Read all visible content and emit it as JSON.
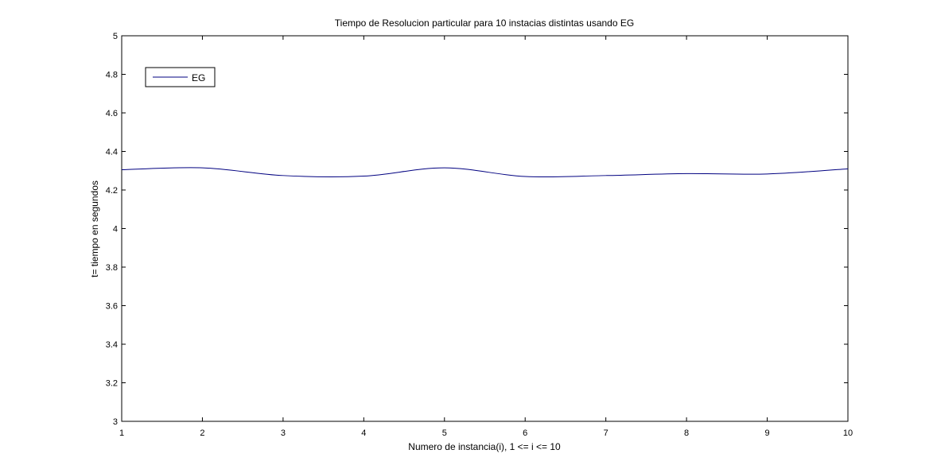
{
  "chart_data": {
    "type": "line",
    "title": "Tiempo de Resolucion particular para 10 instacias distintas usando EG",
    "xlabel": "Numero de instancia(i), 1 <= i <= 10",
    "ylabel": "t= tiempo en segundos",
    "xlim": [
      1,
      10
    ],
    "ylim": [
      3,
      5
    ],
    "xticks": [
      "1",
      "2",
      "3",
      "4",
      "5",
      "6",
      "7",
      "8",
      "9",
      "10"
    ],
    "yticks": [
      "3",
      "3.2",
      "3.4",
      "3.6",
      "3.8",
      "4",
      "4.2",
      "4.4",
      "4.6",
      "4.8",
      "5"
    ],
    "grid": false,
    "legend_position": "top-left",
    "series": [
      {
        "name": "EG",
        "color": "#000080",
        "x": [
          1,
          2,
          3,
          4,
          5,
          6,
          7,
          8,
          9,
          10
        ],
        "values": [
          4.305,
          4.315,
          4.275,
          4.272,
          4.315,
          4.27,
          4.275,
          4.285,
          4.283,
          4.31
        ]
      }
    ]
  }
}
